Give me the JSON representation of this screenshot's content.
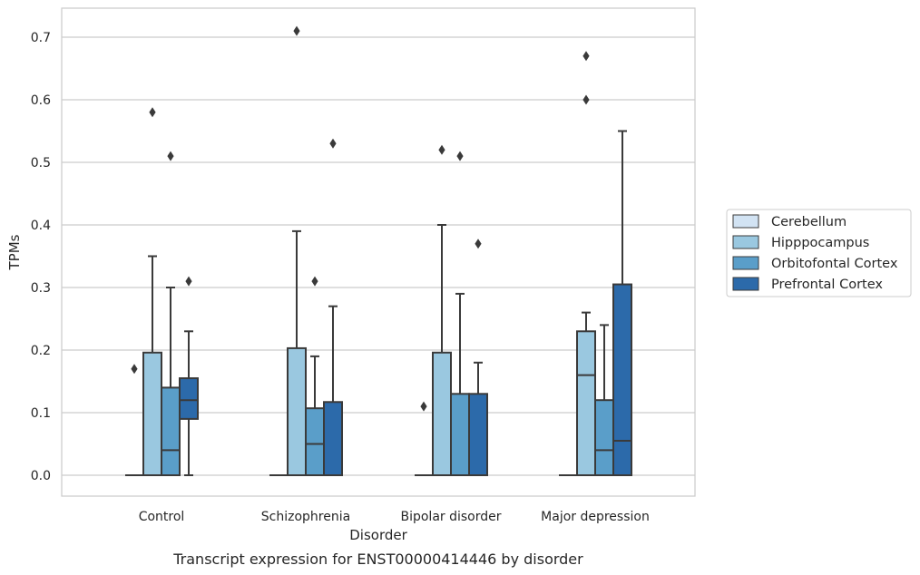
{
  "chart_data": {
    "type": "box",
    "caption": "Transcript expression for ENST00000414446 by disorder",
    "xlabel": "Disorder",
    "ylabel": "TPMs",
    "ylim": [
      -0.035,
      0.745
    ],
    "yticks": [
      0.0,
      0.1,
      0.2,
      0.3,
      0.4,
      0.5,
      0.6,
      0.7
    ],
    "ytick_labels": [
      "0.0",
      "0.1",
      "0.2",
      "0.3",
      "0.4",
      "0.5",
      "0.6",
      "0.7"
    ],
    "grid": "horizontal",
    "legend_position": "right",
    "categories": [
      "Control",
      "Schizophrenia",
      "Bipolar disorder",
      "Major depression"
    ],
    "series": [
      {
        "name": "Cerebellum",
        "color": "#d2e3f3",
        "boxes": [
          {
            "whislo": 0.0,
            "q1": 0.0,
            "med": 0.0,
            "q3": 0.0,
            "whishi": 0.0,
            "fliers": [
              0.17
            ]
          },
          {
            "whislo": 0.0,
            "q1": 0.0,
            "med": 0.0,
            "q3": 0.0,
            "whishi": 0.0,
            "fliers": []
          },
          {
            "whislo": 0.0,
            "q1": 0.0,
            "med": 0.0,
            "q3": 0.0,
            "whishi": 0.0,
            "fliers": [
              0.11
            ]
          },
          {
            "whislo": 0.0,
            "q1": 0.0,
            "med": 0.0,
            "q3": 0.0,
            "whishi": 0.0,
            "fliers": []
          }
        ]
      },
      {
        "name": "Hipppocampus",
        "color": "#9ac8e0",
        "boxes": [
          {
            "whislo": 0.0,
            "q1": 0.0,
            "med": 0.0,
            "q3": 0.196,
            "whishi": 0.35,
            "fliers": [
              0.58
            ]
          },
          {
            "whislo": 0.0,
            "q1": 0.0,
            "med": 0.0,
            "q3": 0.203,
            "whishi": 0.39,
            "fliers": [
              0.71
            ]
          },
          {
            "whislo": 0.0,
            "q1": 0.0,
            "med": 0.0,
            "q3": 0.196,
            "whishi": 0.4,
            "fliers": [
              0.52
            ]
          },
          {
            "whislo": 0.0,
            "q1": 0.0,
            "med": 0.16,
            "q3": 0.23,
            "whishi": 0.26,
            "fliers": [
              0.6,
              0.67
            ]
          }
        ]
      },
      {
        "name": "Orbitofontal Cortex",
        "color": "#5a9ec9",
        "boxes": [
          {
            "whislo": 0.0,
            "q1": 0.0,
            "med": 0.04,
            "q3": 0.14,
            "whishi": 0.3,
            "fliers": [
              0.51
            ]
          },
          {
            "whislo": 0.0,
            "q1": 0.0,
            "med": 0.05,
            "q3": 0.107,
            "whishi": 0.19,
            "fliers": [
              0.31
            ]
          },
          {
            "whislo": 0.0,
            "q1": 0.0,
            "med": 0.0,
            "q3": 0.13,
            "whishi": 0.29,
            "fliers": [
              0.51
            ]
          },
          {
            "whislo": 0.0,
            "q1": 0.0,
            "med": 0.04,
            "q3": 0.12,
            "whishi": 0.24,
            "fliers": []
          }
        ]
      },
      {
        "name": "Prefrontal Cortex",
        "color": "#2c6aaa",
        "boxes": [
          {
            "whislo": 0.0,
            "q1": 0.09,
            "med": 0.12,
            "q3": 0.155,
            "whishi": 0.23,
            "fliers": [
              0.31
            ]
          },
          {
            "whislo": 0.0,
            "q1": 0.0,
            "med": 0.0,
            "q3": 0.117,
            "whishi": 0.27,
            "fliers": [
              0.53
            ]
          },
          {
            "whislo": 0.0,
            "q1": 0.0,
            "med": 0.0,
            "q3": 0.13,
            "whishi": 0.18,
            "fliers": [
              0.37
            ]
          },
          {
            "whislo": 0.0,
            "q1": 0.0,
            "med": 0.055,
            "q3": 0.305,
            "whishi": 0.55,
            "fliers": []
          }
        ]
      }
    ]
  }
}
